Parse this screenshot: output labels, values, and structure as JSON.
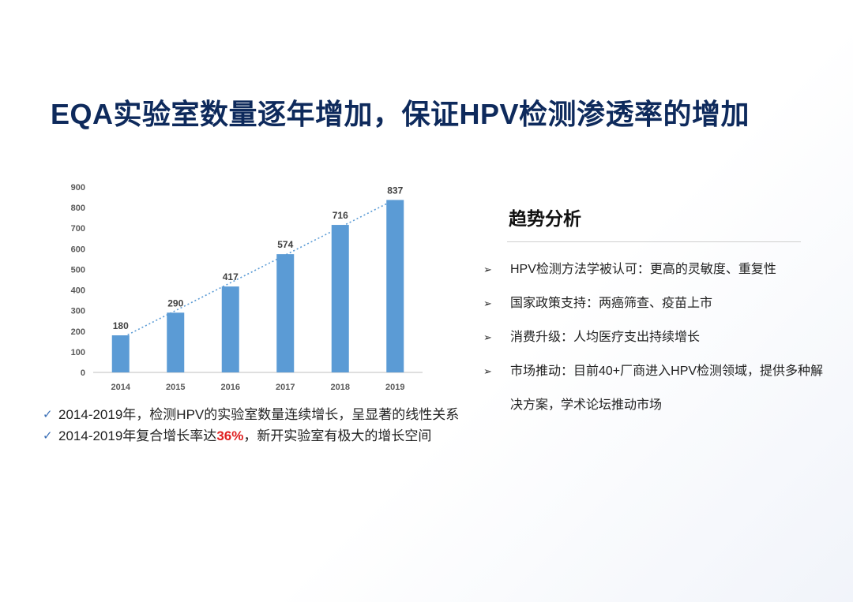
{
  "title": "EQA实验室数量逐年增加，保证HPV检测渗透率的增加",
  "chart_data": {
    "type": "bar",
    "categories": [
      "2014",
      "2015",
      "2016",
      "2017",
      "2018",
      "2019"
    ],
    "values": [
      180,
      290,
      417,
      574,
      716,
      837
    ],
    "data_labels": [
      "180",
      "290",
      "417",
      "574",
      "716",
      "837"
    ],
    "y_ticks": [
      "0",
      "100",
      "200",
      "300",
      "400",
      "500",
      "600",
      "700",
      "800",
      "900"
    ],
    "ylim": [
      0,
      900
    ],
    "trendline": "linear",
    "grid": false,
    "bar_color": "#5b9bd5",
    "trend_color": "#5b9bd5"
  },
  "left_bullets": [
    {
      "text": "2014-2019年，检测HPV的实验室数量连续增长，呈显著的线性关系"
    },
    {
      "pre": "2014-2019年复合增长率达",
      "highlight": "36%",
      "post": "，新开实验室有极大的增长空间"
    }
  ],
  "panel": {
    "title": "趋势分析",
    "items": [
      "HPV检测方法学被认可：更高的灵敏度、重复性",
      "国家政策支持：两癌筛查、疫苗上市",
      "消费升级：人均医疗支出持续增长",
      "市场推动：目前40+厂商进入HPV检测领域，提供多种解决方案，学术论坛推动市场"
    ]
  },
  "colors": {
    "title": "#0e2a5c",
    "highlight": "#e02020",
    "check": "#3a6fb6"
  }
}
